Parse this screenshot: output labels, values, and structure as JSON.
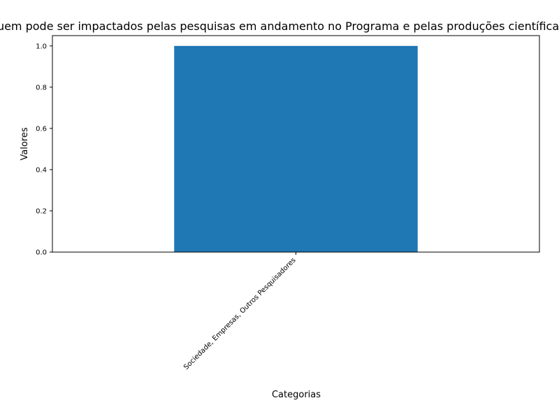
{
  "chart_data": {
    "type": "bar",
    "title": "Quem pode ser impactados pelas pesquisas em andamento no Programa e pelas produções científicas deles?",
    "xlabel": "Categorias",
    "ylabel": "Valores",
    "categories": [
      "Sociedade, Empresas, Outros Pesquisadores"
    ],
    "values": [
      1.0
    ],
    "ylim": [
      0,
      1.05
    ],
    "yticks": [
      "0.0",
      "0.2",
      "0.4",
      "0.6",
      "0.8",
      "1.0"
    ],
    "bar_color": "#1f77b4",
    "grid": false,
    "legend": "none"
  }
}
